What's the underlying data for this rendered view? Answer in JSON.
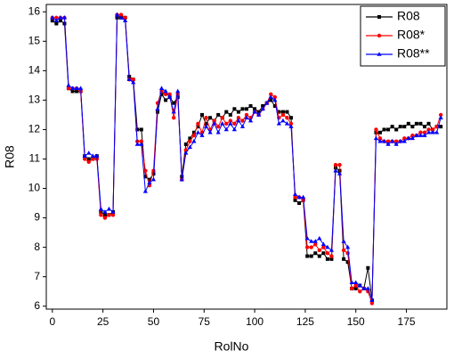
{
  "chart_data": {
    "type": "line",
    "xlabel": "RolNo",
    "ylabel": "R08",
    "x": [
      0,
      2,
      4,
      6,
      8,
      10,
      12,
      14,
      16,
      18,
      20,
      22,
      24,
      26,
      28,
      30,
      32,
      34,
      36,
      38,
      40,
      42,
      44,
      46,
      48,
      50,
      52,
      54,
      56,
      58,
      60,
      62,
      64,
      66,
      68,
      70,
      72,
      74,
      76,
      78,
      80,
      82,
      84,
      86,
      88,
      90,
      92,
      94,
      96,
      98,
      100,
      102,
      104,
      106,
      108,
      110,
      112,
      114,
      116,
      118,
      120,
      122,
      124,
      126,
      128,
      130,
      132,
      134,
      136,
      138,
      140,
      142,
      144,
      146,
      148,
      150,
      152,
      154,
      156,
      158,
      160,
      162,
      164,
      166,
      168,
      170,
      172,
      174,
      176,
      178,
      180,
      182,
      184,
      186,
      188,
      190,
      192
    ],
    "series": [
      {
        "name": "R08",
        "color": "#000000",
        "marker": "square",
        "values": [
          15.7,
          15.6,
          15.7,
          15.6,
          13.4,
          13.3,
          13.3,
          13.3,
          11.1,
          11.0,
          11.0,
          11.1,
          9.2,
          9.1,
          9.1,
          9.2,
          15.8,
          15.8,
          15.8,
          13.8,
          13.7,
          12.0,
          12.0,
          10.4,
          10.3,
          10.5,
          12.6,
          13.2,
          13.0,
          13.1,
          12.9,
          13.1,
          10.4,
          11.5,
          11.7,
          11.9,
          12.1,
          12.5,
          12.2,
          12.4,
          12.3,
          12.5,
          12.4,
          12.6,
          12.5,
          12.7,
          12.6,
          12.7,
          12.7,
          12.8,
          12.7,
          12.6,
          12.8,
          12.9,
          13.0,
          12.8,
          12.6,
          12.6,
          12.6,
          12.4,
          9.6,
          9.5,
          9.6,
          7.7,
          7.7,
          7.8,
          7.7,
          7.8,
          7.6,
          7.6,
          10.7,
          10.6,
          7.6,
          7.5,
          6.6,
          6.6,
          6.7,
          6.6,
          7.3,
          6.2,
          11.9,
          11.9,
          12.0,
          12.0,
          12.1,
          12.0,
          12.1,
          12.1,
          12.2,
          12.1,
          12.2,
          12.2,
          12.1,
          12.2,
          12.0,
          12.1,
          12.1
        ]
      },
      {
        "name": "R08*",
        "color": "#ff0000",
        "marker": "circle",
        "values": [
          15.8,
          15.8,
          15.8,
          15.8,
          13.4,
          13.4,
          13.4,
          13.3,
          11.0,
          10.9,
          11.0,
          11.0,
          9.1,
          9.0,
          9.1,
          9.1,
          15.9,
          15.9,
          15.8,
          13.7,
          13.7,
          11.6,
          11.6,
          10.6,
          10.1,
          10.6,
          12.9,
          13.3,
          13.2,
          13.2,
          12.4,
          13.2,
          10.3,
          11.3,
          11.6,
          11.8,
          12.2,
          11.9,
          12.4,
          12.0,
          12.3,
          12.1,
          12.4,
          12.2,
          12.3,
          12.2,
          12.4,
          12.3,
          12.5,
          12.4,
          12.6,
          12.5,
          12.7,
          12.9,
          13.2,
          13.1,
          12.4,
          12.5,
          12.4,
          12.2,
          9.7,
          9.7,
          9.6,
          8.0,
          8.0,
          8.1,
          7.9,
          8.0,
          7.8,
          7.7,
          10.8,
          10.8,
          7.9,
          7.8,
          6.6,
          6.7,
          6.5,
          6.6,
          6.5,
          6.1,
          12.0,
          11.7,
          11.6,
          11.6,
          11.6,
          11.6,
          11.6,
          11.7,
          11.7,
          11.8,
          11.8,
          11.9,
          11.9,
          12.0,
          12.0,
          12.1,
          12.5
        ]
      },
      {
        "name": "R08**",
        "color": "#0000ff",
        "marker": "triangle",
        "values": [
          15.8,
          15.7,
          15.8,
          15.8,
          13.5,
          13.4,
          13.4,
          13.4,
          11.1,
          11.2,
          11.1,
          11.1,
          9.3,
          9.2,
          9.3,
          9.2,
          15.9,
          15.8,
          15.7,
          13.7,
          13.6,
          11.5,
          11.5,
          9.9,
          10.2,
          10.3,
          12.7,
          13.4,
          13.3,
          13.1,
          12.6,
          13.3,
          10.3,
          11.2,
          11.4,
          11.6,
          11.9,
          11.8,
          12.1,
          11.9,
          12.2,
          11.9,
          12.2,
          12.0,
          12.2,
          12.0,
          12.3,
          12.1,
          12.4,
          12.3,
          12.6,
          12.5,
          12.7,
          12.9,
          13.1,
          13.0,
          12.2,
          12.3,
          12.2,
          12.1,
          9.8,
          9.7,
          9.7,
          8.3,
          8.2,
          8.2,
          8.3,
          8.1,
          8.0,
          7.9,
          10.6,
          10.5,
          8.2,
          8.0,
          6.8,
          6.8,
          6.7,
          6.6,
          6.6,
          6.2,
          11.7,
          11.6,
          11.6,
          11.5,
          11.6,
          11.5,
          11.6,
          11.6,
          11.7,
          11.7,
          11.8,
          11.8,
          11.8,
          11.9,
          11.9,
          11.9,
          12.4
        ]
      }
    ],
    "xlim": [
      -3,
      195
    ],
    "xticks": [
      0,
      25,
      50,
      75,
      100,
      125,
      150,
      175
    ],
    "ylim": [
      5.9,
      16.25
    ],
    "yticks": [
      6,
      7,
      8,
      9,
      10,
      11,
      12,
      13,
      14,
      15,
      16
    ],
    "grid": false,
    "legend": "upper right"
  }
}
